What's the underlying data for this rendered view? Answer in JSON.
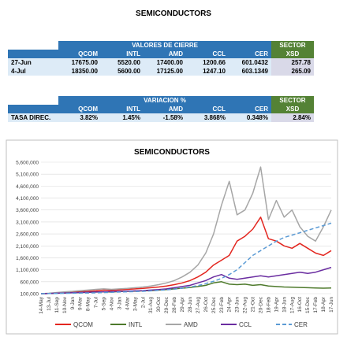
{
  "page_title": "SEMICONDUCTORS",
  "tables": [
    {
      "group_header": "VALORES DE CIERRE",
      "sector_header": "SECTOR",
      "columns": [
        "QCOM",
        "INTL",
        "AMD",
        "CCL",
        "CER",
        "XSD"
      ],
      "rows": [
        [
          "27-Jun",
          "17675.00",
          "5520.00",
          "17400.00",
          "1200.66",
          "601.0432",
          "257.78"
        ],
        [
          "4-Jul",
          "18350.00",
          "5600.00",
          "17125.00",
          "1247.10",
          "603.1349",
          "265.09"
        ]
      ]
    },
    {
      "group_header": "VARIACION %",
      "sector_header": "SECTOR",
      "columns": [
        "QCOM",
        "INTL",
        "AMD",
        "CCL",
        "CER",
        "XSD"
      ],
      "rows": [
        [
          "TASA DIREC.",
          "3.82%",
          "1.45%",
          "-1.58%",
          "3.868%",
          "0.348%",
          "2.84%"
        ]
      ]
    }
  ],
  "chart_data": {
    "type": "line",
    "title": "SEMICONDUCTORS",
    "categories": [
      "14-May",
      "13-Jul",
      "11-Sep",
      "10-Nov",
      "9-Jan",
      "9-Mar",
      "8-May",
      "7-Jul",
      "5-Sep",
      "4-Nov",
      "3-Jan",
      "4-Mar",
      "3-May",
      "2-Jul",
      "31-Aug",
      "30-Oct",
      "29-Dec",
      "28-Feb",
      "29-Apr",
      "28-Jun",
      "27-Aug",
      "26-Oct",
      "25-Dec",
      "23-Feb",
      "24-Apr",
      "23-Jun",
      "22-Aug",
      "21-Oct",
      "20-Dec",
      "18-Feb",
      "19-Apr",
      "18-Jun",
      "17-Aug",
      "16-Oct",
      "15-Dec",
      "17-Feb",
      "18-Apr",
      "17-Jun"
    ],
    "ylim": [
      100000,
      5600000
    ],
    "yticks": [
      {
        "value": 100000,
        "label": "100,000"
      },
      {
        "value": 600000,
        "label": "600,000"
      },
      {
        "value": 1100000,
        "label": "1,100,000"
      },
      {
        "value": 1600000,
        "label": "1,600,000"
      },
      {
        "value": 2100000,
        "label": "2,100,000"
      },
      {
        "value": 2600000,
        "label": "2,600,000"
      },
      {
        "value": 3100000,
        "label": "3,100,000"
      },
      {
        "value": 3600000,
        "label": "3,600,000"
      },
      {
        "value": 4100000,
        "label": "4,100,000"
      },
      {
        "value": 4600000,
        "label": "4,600,000"
      },
      {
        "value": 5100000,
        "label": "5,100,000"
      },
      {
        "value": 5600000,
        "label": "5,600,000"
      }
    ],
    "grid": true,
    "series": [
      {
        "name": "QCOM",
        "color": "#e3261f",
        "values": [
          100000,
          110000,
          130000,
          150000,
          170000,
          180000,
          200000,
          220000,
          250000,
          240000,
          260000,
          280000,
          300000,
          320000,
          350000,
          380000,
          420000,
          480000,
          550000,
          650000,
          800000,
          1000000,
          1300000,
          1500000,
          1700000,
          2300000,
          2500000,
          2800000,
          3300000,
          2400000,
          2300000,
          2100000,
          2000000,
          2200000,
          2000000,
          1800000,
          1700000,
          1900000
        ]
      },
      {
        "name": "INTL",
        "color": "#4e7a2c",
        "values": [
          100000,
          110000,
          120000,
          130000,
          140000,
          150000,
          160000,
          170000,
          180000,
          170000,
          190000,
          200000,
          210000,
          220000,
          230000,
          250000,
          270000,
          300000,
          330000,
          360000,
          400000,
          450000,
          550000,
          600000,
          500000,
          480000,
          500000,
          450000,
          480000,
          420000,
          400000,
          380000,
          370000,
          360000,
          350000,
          340000,
          330000,
          340000
        ]
      },
      {
        "name": "AMD",
        "color": "#a6a6a6",
        "values": [
          100000,
          120000,
          150000,
          180000,
          200000,
          230000,
          250000,
          280000,
          300000,
          280000,
          300000,
          320000,
          350000,
          380000,
          420000,
          480000,
          550000,
          650000,
          800000,
          1000000,
          1300000,
          1800000,
          2600000,
          3800000,
          4800000,
          3400000,
          3600000,
          4300000,
          5400000,
          3200000,
          4000000,
          3300000,
          3600000,
          2900000,
          2500000,
          2300000,
          2900000,
          3600000
        ]
      },
      {
        "name": "CCL",
        "color": "#6a2da0",
        "values": [
          100000,
          110000,
          120000,
          130000,
          140000,
          150000,
          160000,
          170000,
          180000,
          190000,
          200000,
          210000,
          220000,
          230000,
          250000,
          270000,
          300000,
          350000,
          400000,
          450000,
          550000,
          650000,
          800000,
          900000,
          750000,
          700000,
          750000,
          800000,
          850000,
          800000,
          850000,
          900000,
          950000,
          1000000,
          950000,
          1000000,
          1100000,
          1200000
        ]
      },
      {
        "name": "CER",
        "color": "#5b9bd5",
        "dashed": true,
        "values": [
          100000,
          105000,
          110000,
          115000,
          120000,
          125000,
          130000,
          140000,
          150000,
          160000,
          170000,
          180000,
          190000,
          200000,
          220000,
          240000,
          260000,
          290000,
          330000,
          380000,
          440000,
          520000,
          620000,
          740000,
          900000,
          1100000,
          1400000,
          1700000,
          1900000,
          2100000,
          2300000,
          2450000,
          2550000,
          2650000,
          2750000,
          2850000,
          2950000,
          3050000
        ]
      }
    ]
  }
}
